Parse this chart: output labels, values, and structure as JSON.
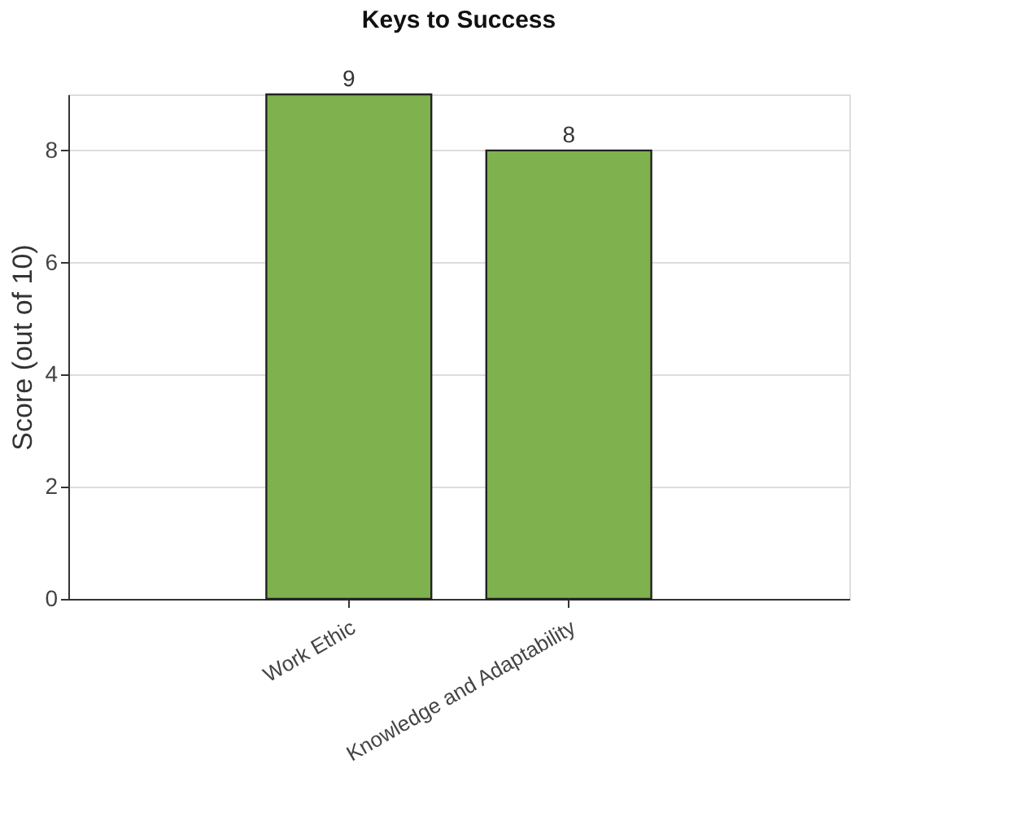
{
  "chart_data": {
    "type": "bar",
    "title": "Keys to Success",
    "ylabel": "Score (out of 10)",
    "categories": [
      "Work Ethic",
      "Knowledge and Adaptability"
    ],
    "values": [
      9,
      8
    ],
    "color": "#7fb24e",
    "ylim": [
      0,
      9
    ],
    "yticks": [
      0,
      2,
      4,
      6,
      8
    ],
    "grid": "y",
    "data_labels": true
  }
}
